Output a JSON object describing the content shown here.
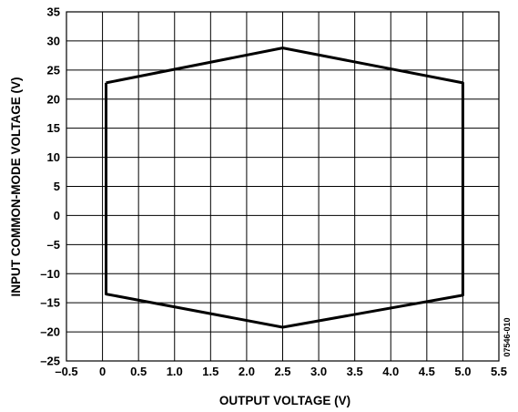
{
  "chart_data": {
    "type": "line",
    "xlabel": "OUTPUT VOLTAGE (V)",
    "ylabel": "INPUT COMMON-MODE VOLTAGE (V)",
    "xlim": [
      -0.5,
      5.5
    ],
    "ylim": [
      -25,
      35
    ],
    "x_ticks": [
      "–0.5",
      "0",
      "0.5",
      "1.0",
      "1.5",
      "2.0",
      "2.5",
      "3.0",
      "3.5",
      "4.0",
      "4.5",
      "5.0",
      "5.5"
    ],
    "y_ticks": [
      "35",
      "30",
      "25",
      "20",
      "15",
      "10",
      "5",
      "0",
      "–5",
      "–10",
      "–15",
      "–20",
      "–25"
    ],
    "grid": true,
    "series": [
      {
        "x": [
          0.05,
          2.5,
          5.0,
          5.0,
          2.5,
          0.05,
          0.05
        ],
        "y": [
          22.8,
          28.8,
          22.8,
          -13.7,
          -19.2,
          -13.5,
          22.8
        ]
      }
    ],
    "side_note": "07546-010"
  }
}
